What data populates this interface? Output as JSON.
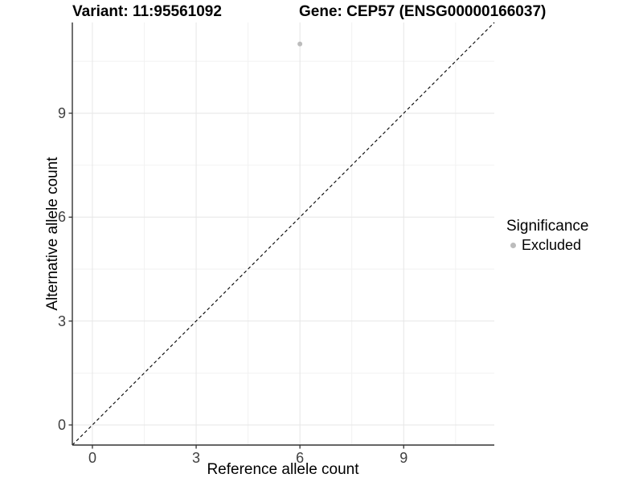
{
  "titles": {
    "variant": "Variant: 11:95561092",
    "gene": "Gene: CEP57 (ENSG00000166037)"
  },
  "chart_data": {
    "type": "scatter",
    "xlabel": "Reference allele count",
    "ylabel": "Alternative allele count",
    "xlim": [
      -0.58,
      11.62
    ],
    "ylim": [
      -0.58,
      11.62
    ],
    "x_ticks": [
      0,
      3,
      6,
      9
    ],
    "y_ticks": [
      0,
      3,
      6,
      9
    ],
    "x_minor_ticks": [
      1.5,
      4.5,
      7.5,
      10.5
    ],
    "y_minor_ticks": [
      1.5,
      4.5,
      7.5,
      10.5
    ],
    "grid": true,
    "points": [
      {
        "x": 6,
        "y": 11,
        "significance": "Excluded"
      }
    ],
    "reference_line": {
      "type": "identity",
      "style": "dashed",
      "color": "#000000"
    },
    "legend": {
      "title": "Significance",
      "position": "right",
      "items": [
        {
          "label": "Excluded",
          "color": "#bcbcbc"
        }
      ]
    }
  },
  "colors": {
    "background": "#ffffff",
    "grid_major": "#e6e6e6",
    "grid_minor": "#f2f2f2",
    "axis": "#333333",
    "tick_label": "#404040",
    "point": "#bcbcbc"
  }
}
